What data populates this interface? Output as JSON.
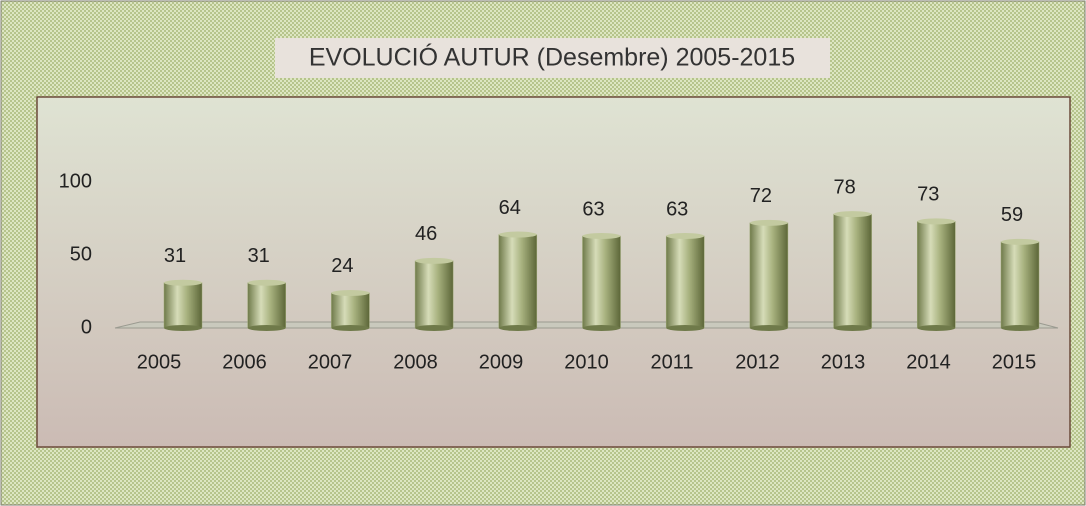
{
  "chart_data": {
    "type": "bar",
    "title": "EVOLUCIÓ AUTUR (Desembre) 2005-2015",
    "categories": [
      "2005",
      "2006",
      "2007",
      "2008",
      "2009",
      "2010",
      "2011",
      "2012",
      "2013",
      "2014",
      "2015"
    ],
    "values": [
      31,
      31,
      24,
      46,
      64,
      63,
      63,
      72,
      78,
      73,
      59
    ],
    "color": "#9ca774",
    "ylim": [
      0,
      100
    ],
    "yticks": [
      0,
      50,
      100
    ],
    "grid": false
  }
}
